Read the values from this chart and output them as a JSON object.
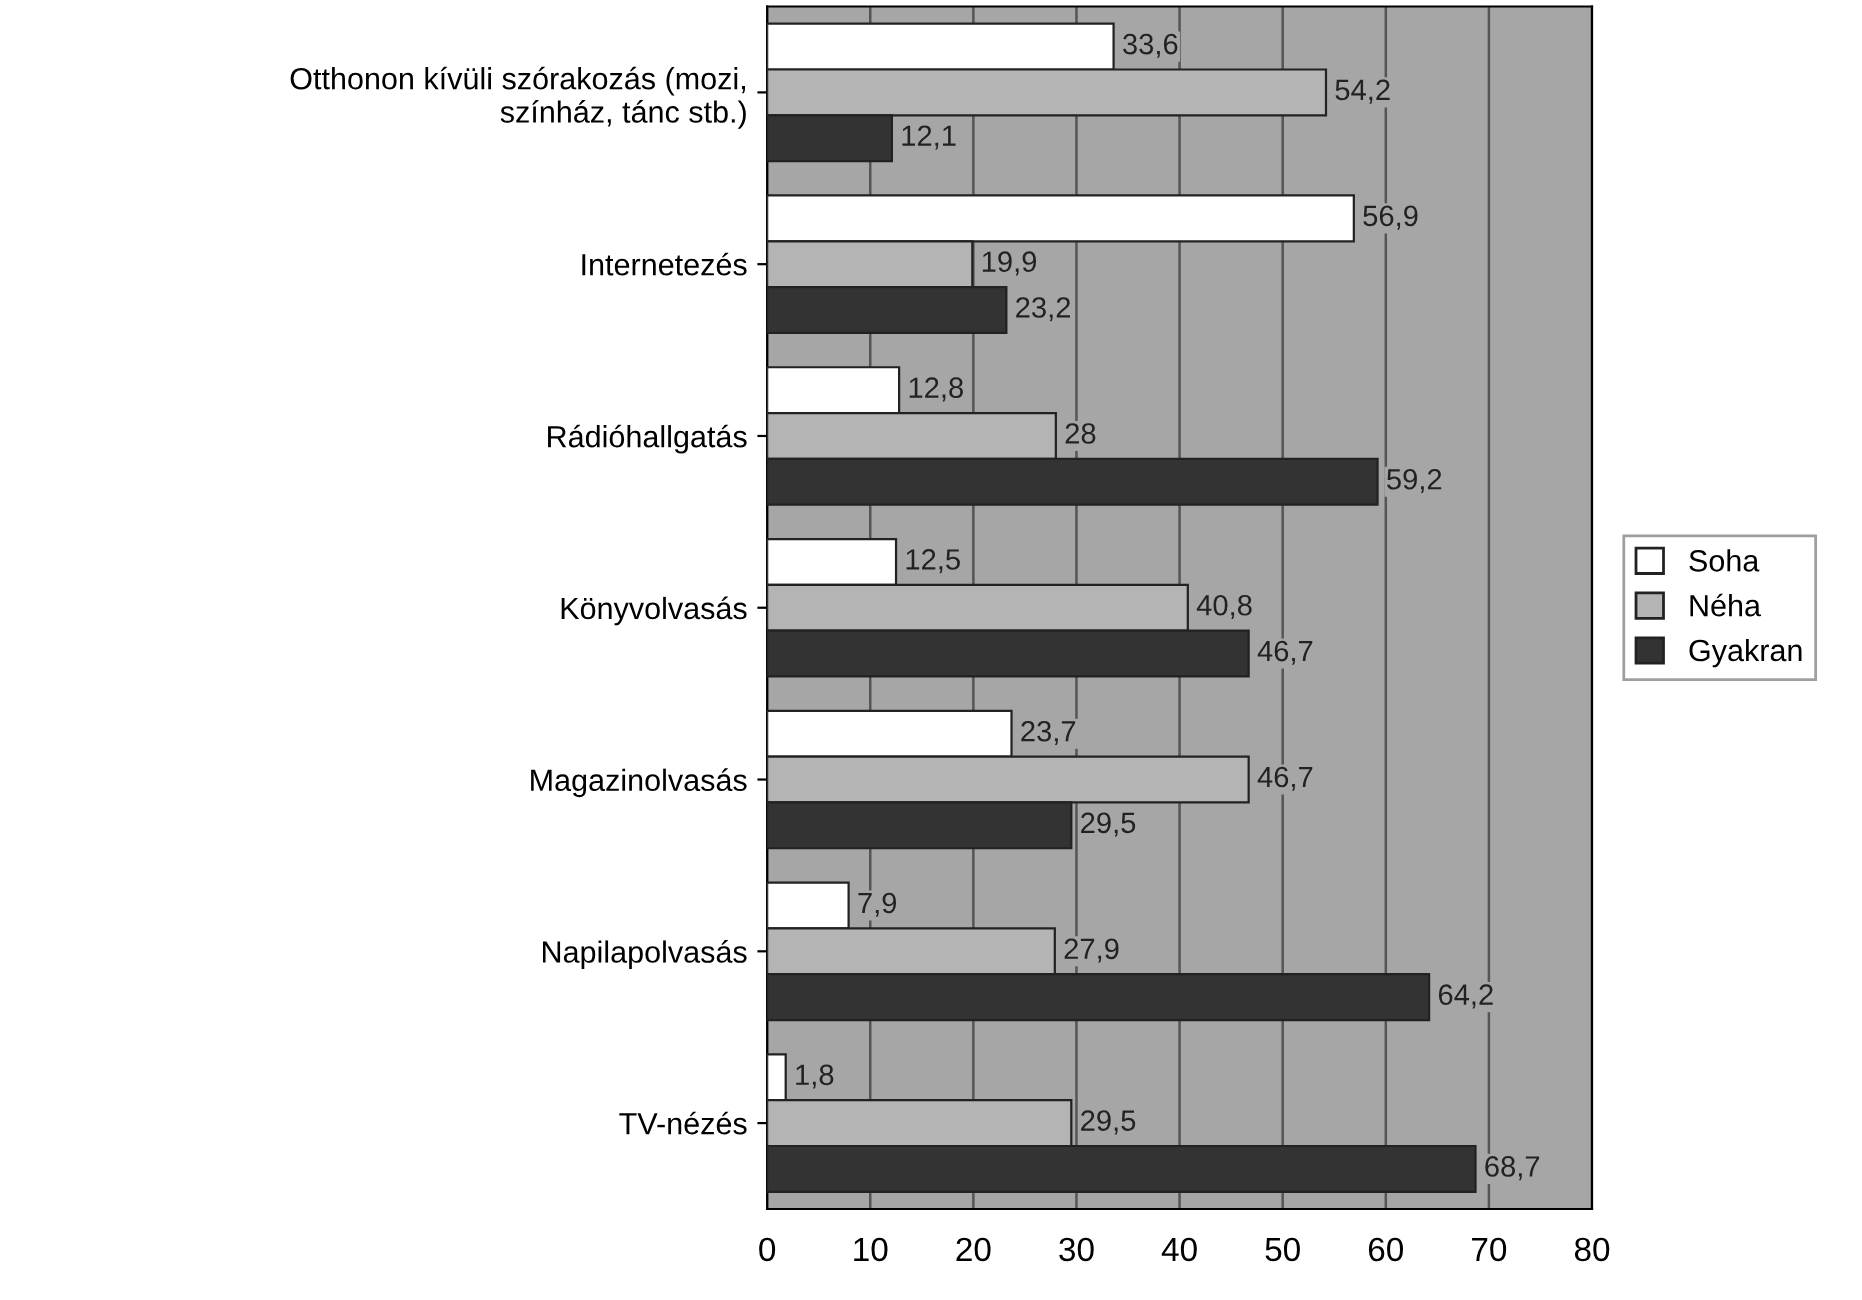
{
  "chart_data": {
    "type": "bar",
    "orientation": "horizontal",
    "categories": [
      "Otthonon kívüli szórakozás (mozi, színház, tánc stb.)",
      "Internetezés",
      "Rádióhallgatás",
      "Könyvolvasás",
      "Magazinolvasás",
      "Napilapolvasás",
      "TV-nézés"
    ],
    "series": [
      {
        "name": "Soha",
        "color": "#ffffff",
        "values": [
          33.6,
          56.9,
          12.8,
          12.5,
          23.7,
          7.9,
          1.8
        ],
        "value_labels": [
          "33,6",
          "56,9",
          "12,8",
          "12,5",
          "23,7",
          "7,9",
          "1,8"
        ]
      },
      {
        "name": "Néha",
        "color": "#b4b4b4",
        "values": [
          54.2,
          19.9,
          28,
          40.8,
          46.7,
          27.9,
          29.5
        ],
        "value_labels": [
          "54,2",
          "19,9",
          "28",
          "40,8",
          "46,7",
          "27,9",
          "29,5"
        ]
      },
      {
        "name": "Gyakran",
        "color": "#333333",
        "values": [
          12.1,
          23.2,
          59.2,
          46.7,
          29.5,
          64.2,
          68.7
        ],
        "value_labels": [
          "12,1",
          "23,2",
          "59,2",
          "46,7",
          "29,5",
          "64,2",
          "68,7"
        ]
      }
    ],
    "xlim": [
      0,
      80
    ],
    "xticks": [
      0,
      10,
      20,
      30,
      40,
      50,
      60,
      70,
      80
    ],
    "grid": "x",
    "legend": "right"
  }
}
